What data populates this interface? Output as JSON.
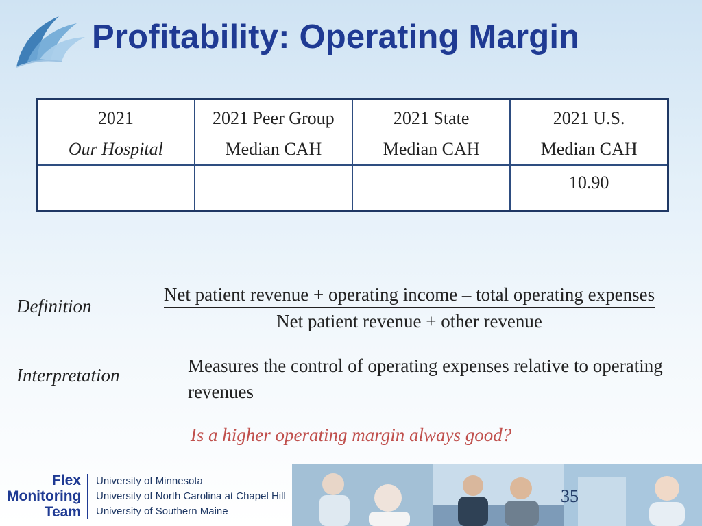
{
  "title": "Profitability:  Operating Margin",
  "table": {
    "headers": [
      {
        "line1": "2021",
        "line2": "Our Hospital"
      },
      {
        "line1": "2021 Peer Group",
        "line2": "Median CAH"
      },
      {
        "line1": "2021 State",
        "line2": "Median CAH"
      },
      {
        "line1": "2021 U.S.",
        "line2": "Median CAH"
      }
    ],
    "values": [
      "",
      "",
      "",
      "10.90"
    ]
  },
  "definition": {
    "label": "Definition",
    "numerator": "Net patient revenue + operating income – total operating expenses",
    "denominator": "Net patient revenue + other revenue"
  },
  "interpretation": {
    "label": "Interpretation",
    "text": "Measures the control of operating expenses relative to operating revenues"
  },
  "question": "Is a higher operating margin always good?",
  "footer": {
    "team_lines": [
      "Flex",
      "Monitoring",
      "Team"
    ],
    "universities": [
      "University of Minnesota",
      "University of North Carolina at Chapel Hill",
      "University of Southern Maine"
    ],
    "page_number": "35"
  },
  "colors": {
    "title": "#1f3a93",
    "question": "#c0504d",
    "table_border": "#1f3864"
  }
}
